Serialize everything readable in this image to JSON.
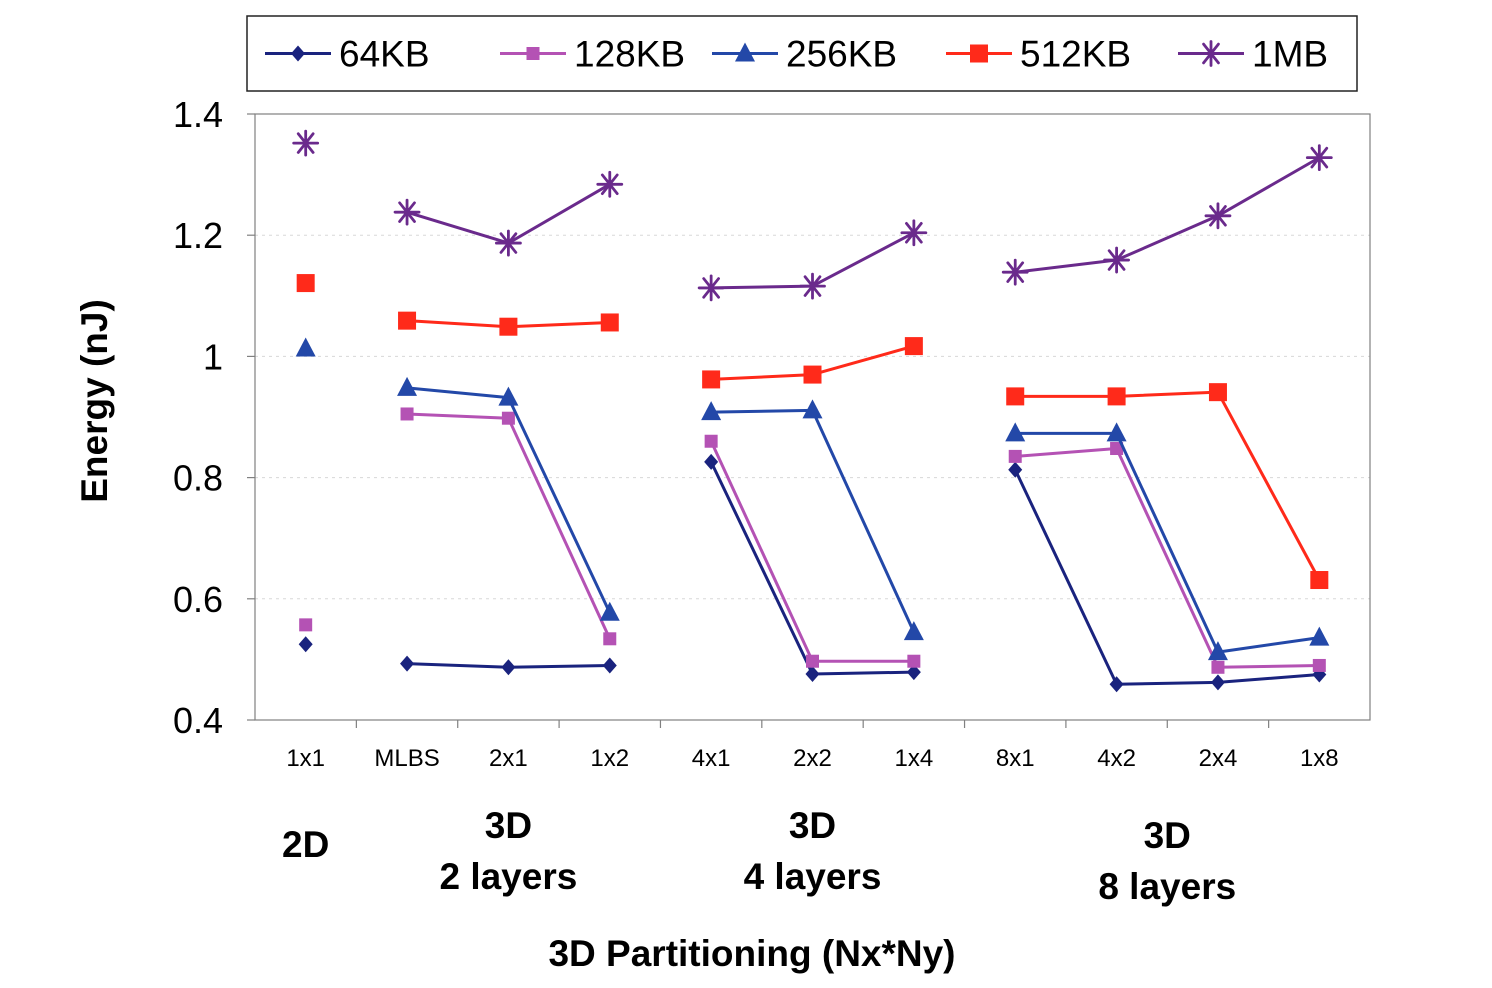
{
  "chart_data": {
    "type": "line",
    "xlabel": "3D Partitioning (Nx*Ny)",
    "ylabel": "Energy (nJ)",
    "ylim": [
      0.4,
      1.4
    ],
    "yticks": [
      "0.4",
      "0.6",
      "0.8",
      "1",
      "1.2",
      "1.4"
    ],
    "grid": "horizontal dashed",
    "legend_position": "top",
    "categories": [
      "1x1",
      "MLBS",
      "2x1",
      "1x2",
      "4x1",
      "2x2",
      "1x4",
      "8x1",
      "4x2",
      "2x4",
      "1x8"
    ],
    "groups": [
      {
        "lines": [
          "2D"
        ],
        "start": 0,
        "end": 0
      },
      {
        "lines": [
          "3D",
          "2 layers"
        ],
        "start": 1,
        "end": 3
      },
      {
        "lines": [
          "3D",
          "4 layers"
        ],
        "start": 4,
        "end": 6
      },
      {
        "lines": [
          "3D",
          "8 layers"
        ],
        "start": 7,
        "end": 10
      }
    ],
    "connected_segments": [
      [
        1,
        3
      ],
      [
        4,
        6
      ],
      [
        7,
        10
      ]
    ],
    "series": [
      {
        "name": "64KB",
        "color": "#1a237e",
        "marker": "diamond",
        "values": [
          0.525,
          0.493,
          0.487,
          0.49,
          0.826,
          0.476,
          0.479,
          0.813,
          0.459,
          0.462,
          0.475
        ]
      },
      {
        "name": "128KB",
        "color": "#b452b4",
        "marker": "square-small",
        "values": [
          0.557,
          0.905,
          0.898,
          0.534,
          0.86,
          0.497,
          0.497,
          0.835,
          0.848,
          0.487,
          0.49
        ]
      },
      {
        "name": "256KB",
        "color": "#2348a8",
        "marker": "triangle",
        "values": [
          1.013,
          0.948,
          0.932,
          0.577,
          0.908,
          0.911,
          0.545,
          0.873,
          0.873,
          0.512,
          0.536
        ]
      },
      {
        "name": "512KB",
        "color": "#ff2a1a",
        "marker": "square",
        "values": [
          1.121,
          1.059,
          1.049,
          1.056,
          0.962,
          0.97,
          1.017,
          0.934,
          0.934,
          0.941,
          0.631
        ]
      },
      {
        "name": "1MB",
        "color": "#6a2a8c",
        "marker": "star",
        "values": [
          1.352,
          1.238,
          1.187,
          1.284,
          1.113,
          1.116,
          1.204,
          1.139,
          1.159,
          1.232,
          1.328
        ]
      }
    ]
  }
}
